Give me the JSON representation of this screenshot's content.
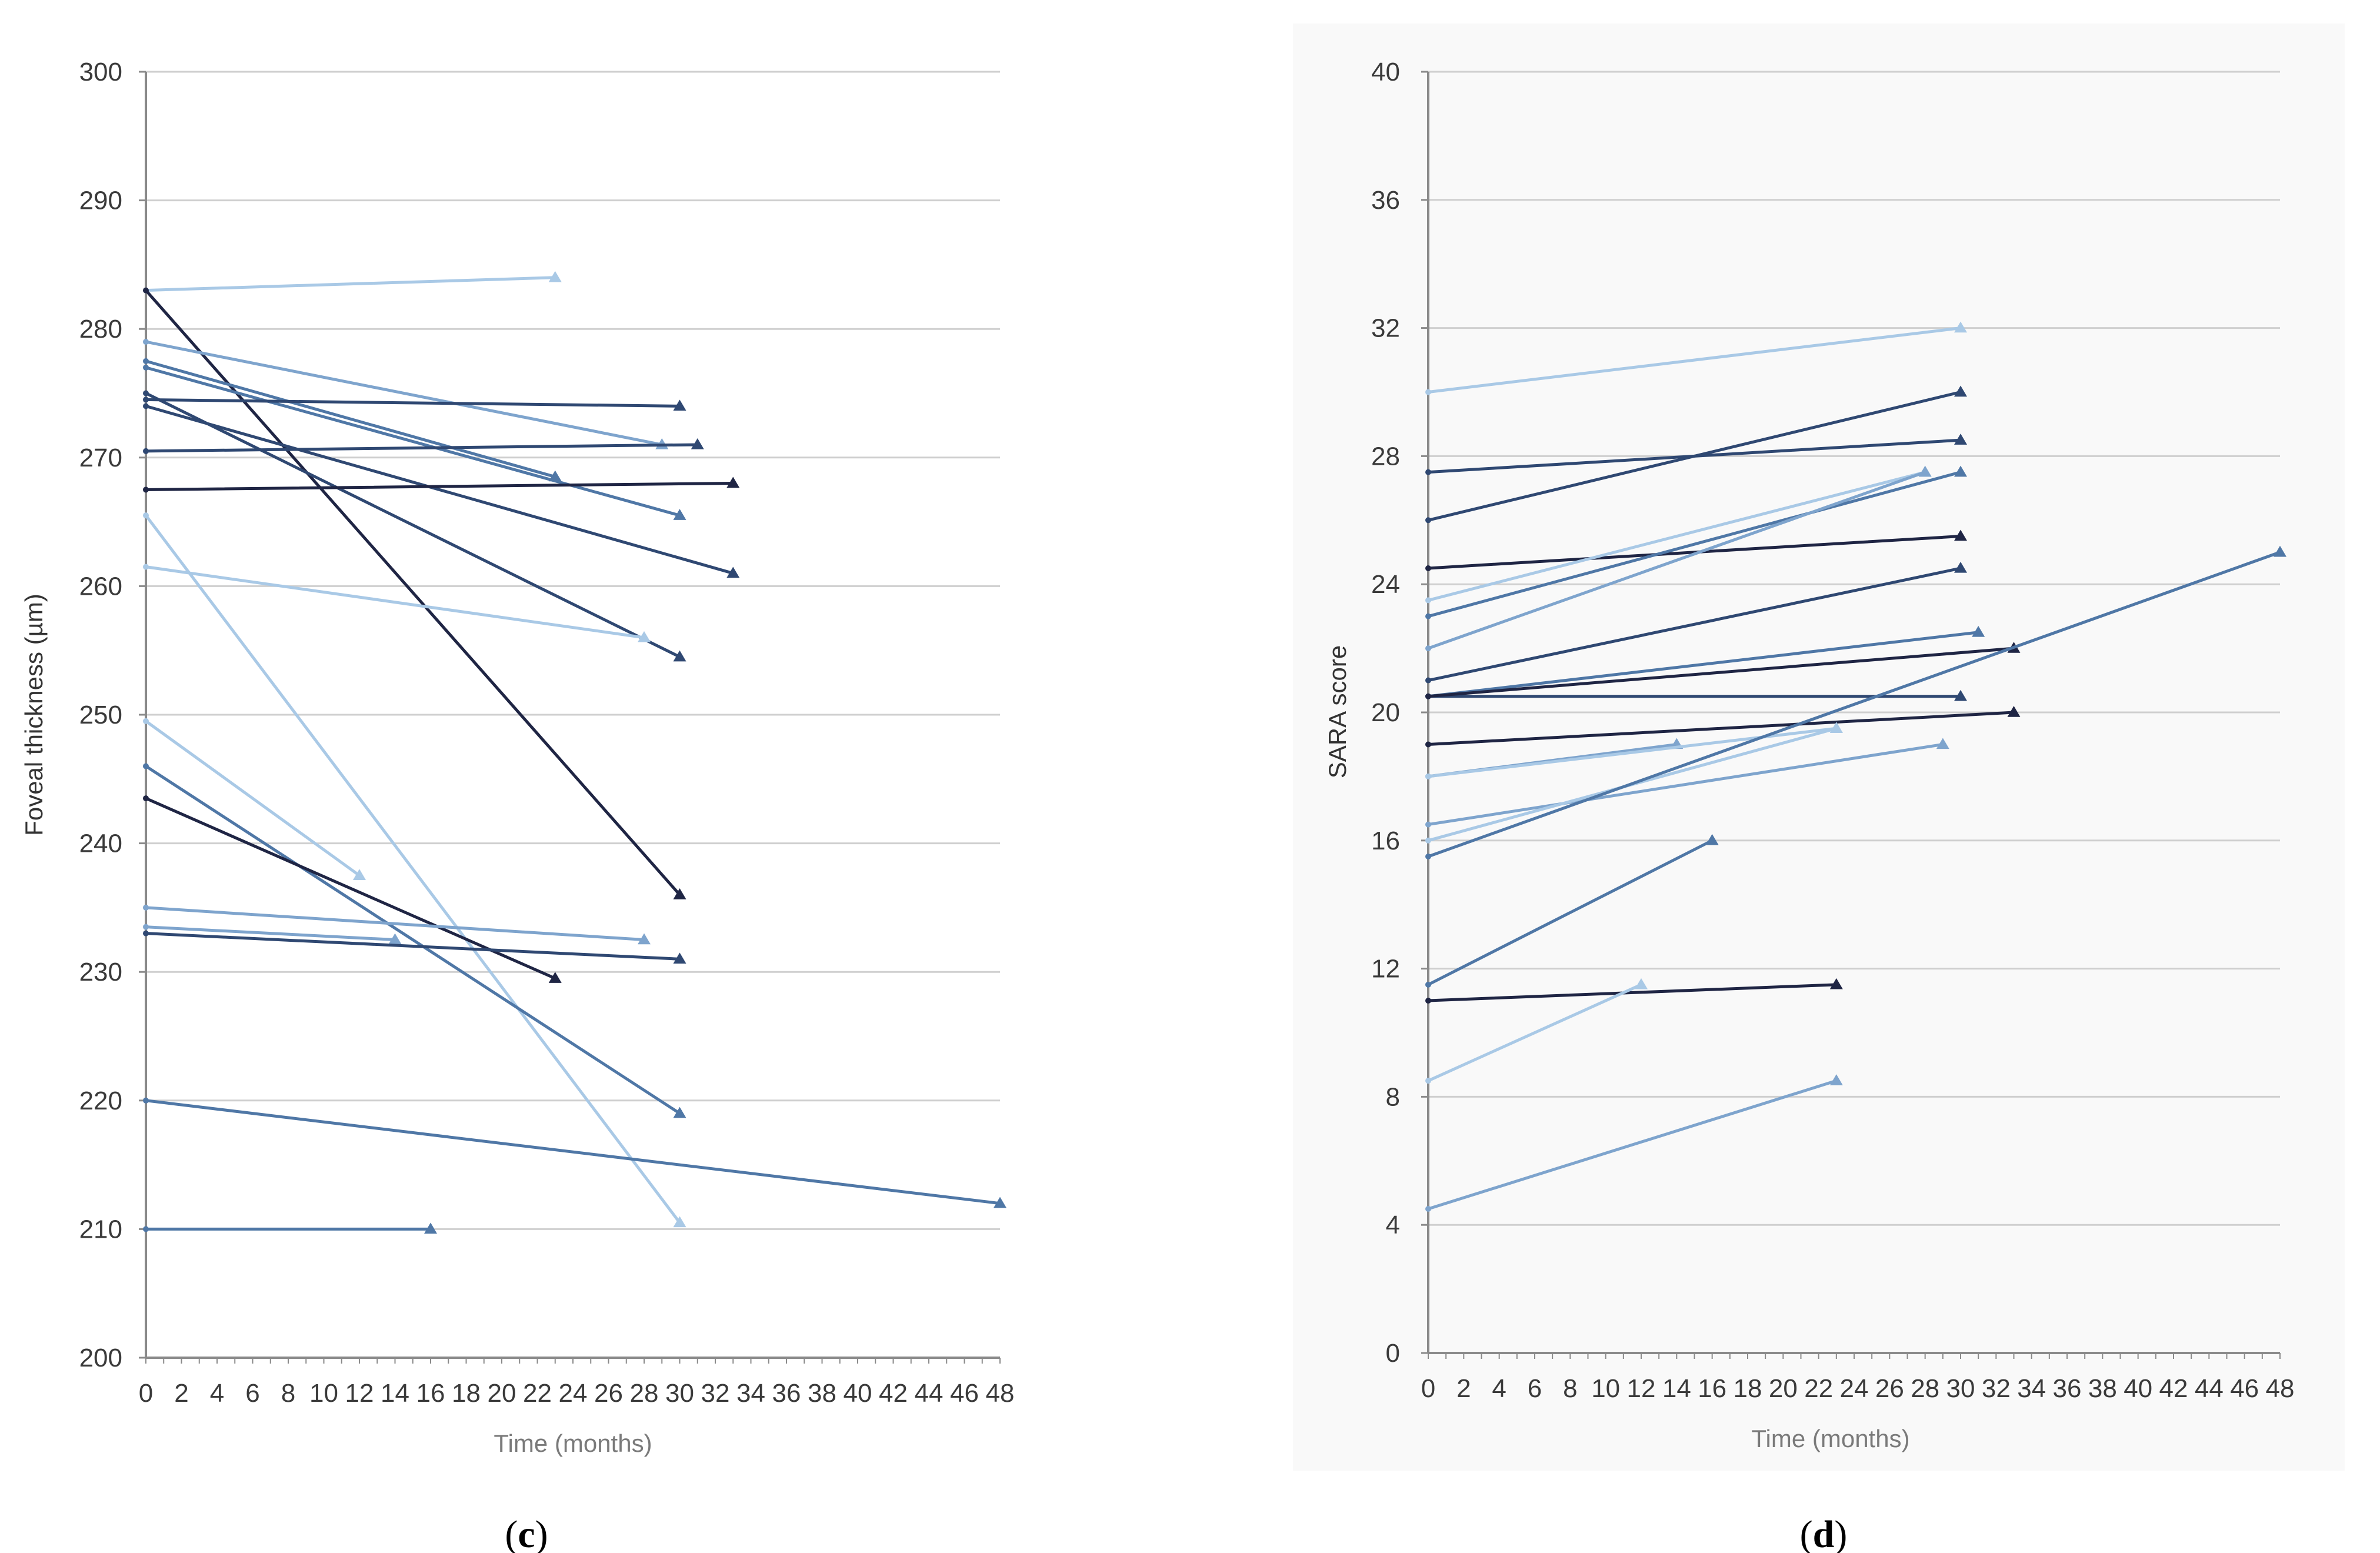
{
  "colors": {
    "grid": "#cfcfcf",
    "axis": "#8a8a8a",
    "series_palette": [
      "#1f2544",
      "#2f4872",
      "#4f77a6",
      "#7ea4cd",
      "#a9c9e6"
    ]
  },
  "chart_data": [
    {
      "type": "line",
      "panel_label": "c",
      "xlabel": "Time (months)",
      "ylabel": "Foveal thickness (µm)",
      "xlim": [
        0,
        48
      ],
      "ylim": [
        200,
        300
      ],
      "xticks": [
        0,
        2,
        4,
        6,
        8,
        10,
        12,
        14,
        16,
        18,
        20,
        22,
        24,
        26,
        28,
        30,
        32,
        34,
        36,
        38,
        40,
        42,
        44,
        46,
        48
      ],
      "yticks": [
        200,
        210,
        220,
        230,
        240,
        250,
        260,
        270,
        280,
        290,
        300
      ],
      "grid": true,
      "series": [
        {
          "color": "#a9c9e6",
          "x": [
            0,
            23
          ],
          "y": [
            283,
            284
          ]
        },
        {
          "color": "#1f2544",
          "x": [
            0,
            30
          ],
          "y": [
            283,
            236
          ]
        },
        {
          "color": "#7ea4cd",
          "x": [
            0,
            29
          ],
          "y": [
            279,
            271
          ]
        },
        {
          "color": "#4f77a6",
          "x": [
            0,
            23
          ],
          "y": [
            277.5,
            268.5
          ]
        },
        {
          "color": "#4f77a6",
          "x": [
            0,
            30
          ],
          "y": [
            277,
            265.5
          ]
        },
        {
          "color": "#2f4872",
          "x": [
            0,
            30
          ],
          "y": [
            274.5,
            274
          ]
        },
        {
          "color": "#2f4872",
          "x": [
            0,
            33
          ],
          "y": [
            274,
            261
          ]
        },
        {
          "color": "#2f4872",
          "x": [
            0,
            30
          ],
          "y": [
            275,
            254.5
          ]
        },
        {
          "color": "#2f4872",
          "x": [
            0,
            31
          ],
          "y": [
            270.5,
            271
          ]
        },
        {
          "color": "#1f2544",
          "x": [
            0,
            33
          ],
          "y": [
            267.5,
            268
          ]
        },
        {
          "color": "#a9c9e6",
          "x": [
            0,
            30
          ],
          "y": [
            265.5,
            210.5
          ]
        },
        {
          "color": "#a9c9e6",
          "x": [
            0,
            28
          ],
          "y": [
            261.5,
            256
          ]
        },
        {
          "color": "#a9c9e6",
          "x": [
            0,
            12
          ],
          "y": [
            249.5,
            237.5
          ]
        },
        {
          "color": "#4f77a6",
          "x": [
            0,
            30
          ],
          "y": [
            246,
            219
          ]
        },
        {
          "color": "#1f2544",
          "x": [
            0,
            23
          ],
          "y": [
            243.5,
            229.5
          ]
        },
        {
          "color": "#7ea4cd",
          "x": [
            0,
            28
          ],
          "y": [
            235,
            232.5
          ]
        },
        {
          "color": "#7ea4cd",
          "x": [
            0,
            14
          ],
          "y": [
            233.5,
            232.5
          ]
        },
        {
          "color": "#2f4872",
          "x": [
            0,
            30
          ],
          "y": [
            233,
            231
          ]
        },
        {
          "color": "#4f77a6",
          "x": [
            0,
            48
          ],
          "y": [
            220,
            212
          ]
        },
        {
          "color": "#4f77a6",
          "x": [
            0,
            16
          ],
          "y": [
            210,
            210
          ]
        }
      ]
    },
    {
      "type": "line",
      "panel_label": "d",
      "xlabel": "Time (months)",
      "ylabel": "SARA score",
      "xlim": [
        0,
        48
      ],
      "ylim": [
        0,
        40
      ],
      "xticks": [
        0,
        2,
        4,
        6,
        8,
        10,
        12,
        14,
        16,
        18,
        20,
        22,
        24,
        26,
        28,
        30,
        32,
        34,
        36,
        38,
        40,
        42,
        44,
        46,
        48
      ],
      "yticks": [
        0,
        4,
        8,
        12,
        16,
        20,
        24,
        28,
        32,
        36,
        40
      ],
      "grid": true,
      "series": [
        {
          "color": "#a9c9e6",
          "x": [
            0,
            30
          ],
          "y": [
            30,
            32
          ]
        },
        {
          "color": "#2f4872",
          "x": [
            0,
            30
          ],
          "y": [
            27.5,
            28.5
          ]
        },
        {
          "color": "#2f4872",
          "x": [
            0,
            30
          ],
          "y": [
            26,
            30
          ]
        },
        {
          "color": "#1f2544",
          "x": [
            0,
            30
          ],
          "y": [
            24.5,
            25.5
          ]
        },
        {
          "color": "#a9c9e6",
          "x": [
            0,
            28
          ],
          "y": [
            23.5,
            27.5
          ]
        },
        {
          "color": "#4f77a6",
          "x": [
            0,
            30
          ],
          "y": [
            23,
            27.5
          ]
        },
        {
          "color": "#7ea4cd",
          "x": [
            0,
            28
          ],
          "y": [
            22,
            27.5
          ]
        },
        {
          "color": "#2f4872",
          "x": [
            0,
            30
          ],
          "y": [
            21,
            24.5
          ]
        },
        {
          "color": "#4f77a6",
          "x": [
            0,
            31
          ],
          "y": [
            20.5,
            22.5
          ]
        },
        {
          "color": "#2f4872",
          "x": [
            0,
            30
          ],
          "y": [
            20.5,
            20.5
          ]
        },
        {
          "color": "#1f2544",
          "x": [
            0,
            33
          ],
          "y": [
            20.5,
            22
          ]
        },
        {
          "color": "#1f2544",
          "x": [
            0,
            33
          ],
          "y": [
            19,
            20
          ]
        },
        {
          "color": "#7ea4cd",
          "x": [
            0,
            14
          ],
          "y": [
            18,
            19
          ]
        },
        {
          "color": "#a9c9e6",
          "x": [
            0,
            23
          ],
          "y": [
            18,
            19.5
          ]
        },
        {
          "color": "#7ea4cd",
          "x": [
            0,
            29
          ],
          "y": [
            16.5,
            19
          ]
        },
        {
          "color": "#a9c9e6",
          "x": [
            0,
            23
          ],
          "y": [
            16,
            19.5
          ]
        },
        {
          "color": "#4f77a6",
          "x": [
            0,
            48
          ],
          "y": [
            15.5,
            25
          ]
        },
        {
          "color": "#4f77a6",
          "x": [
            0,
            16
          ],
          "y": [
            11.5,
            16
          ]
        },
        {
          "color": "#1f2544",
          "x": [
            0,
            23
          ],
          "y": [
            11,
            11.5
          ]
        },
        {
          "color": "#a9c9e6",
          "x": [
            0,
            12
          ],
          "y": [
            8.5,
            11.5
          ]
        },
        {
          "color": "#7ea4cd",
          "x": [
            0,
            23
          ],
          "y": [
            4.5,
            8.5
          ]
        }
      ]
    }
  ]
}
